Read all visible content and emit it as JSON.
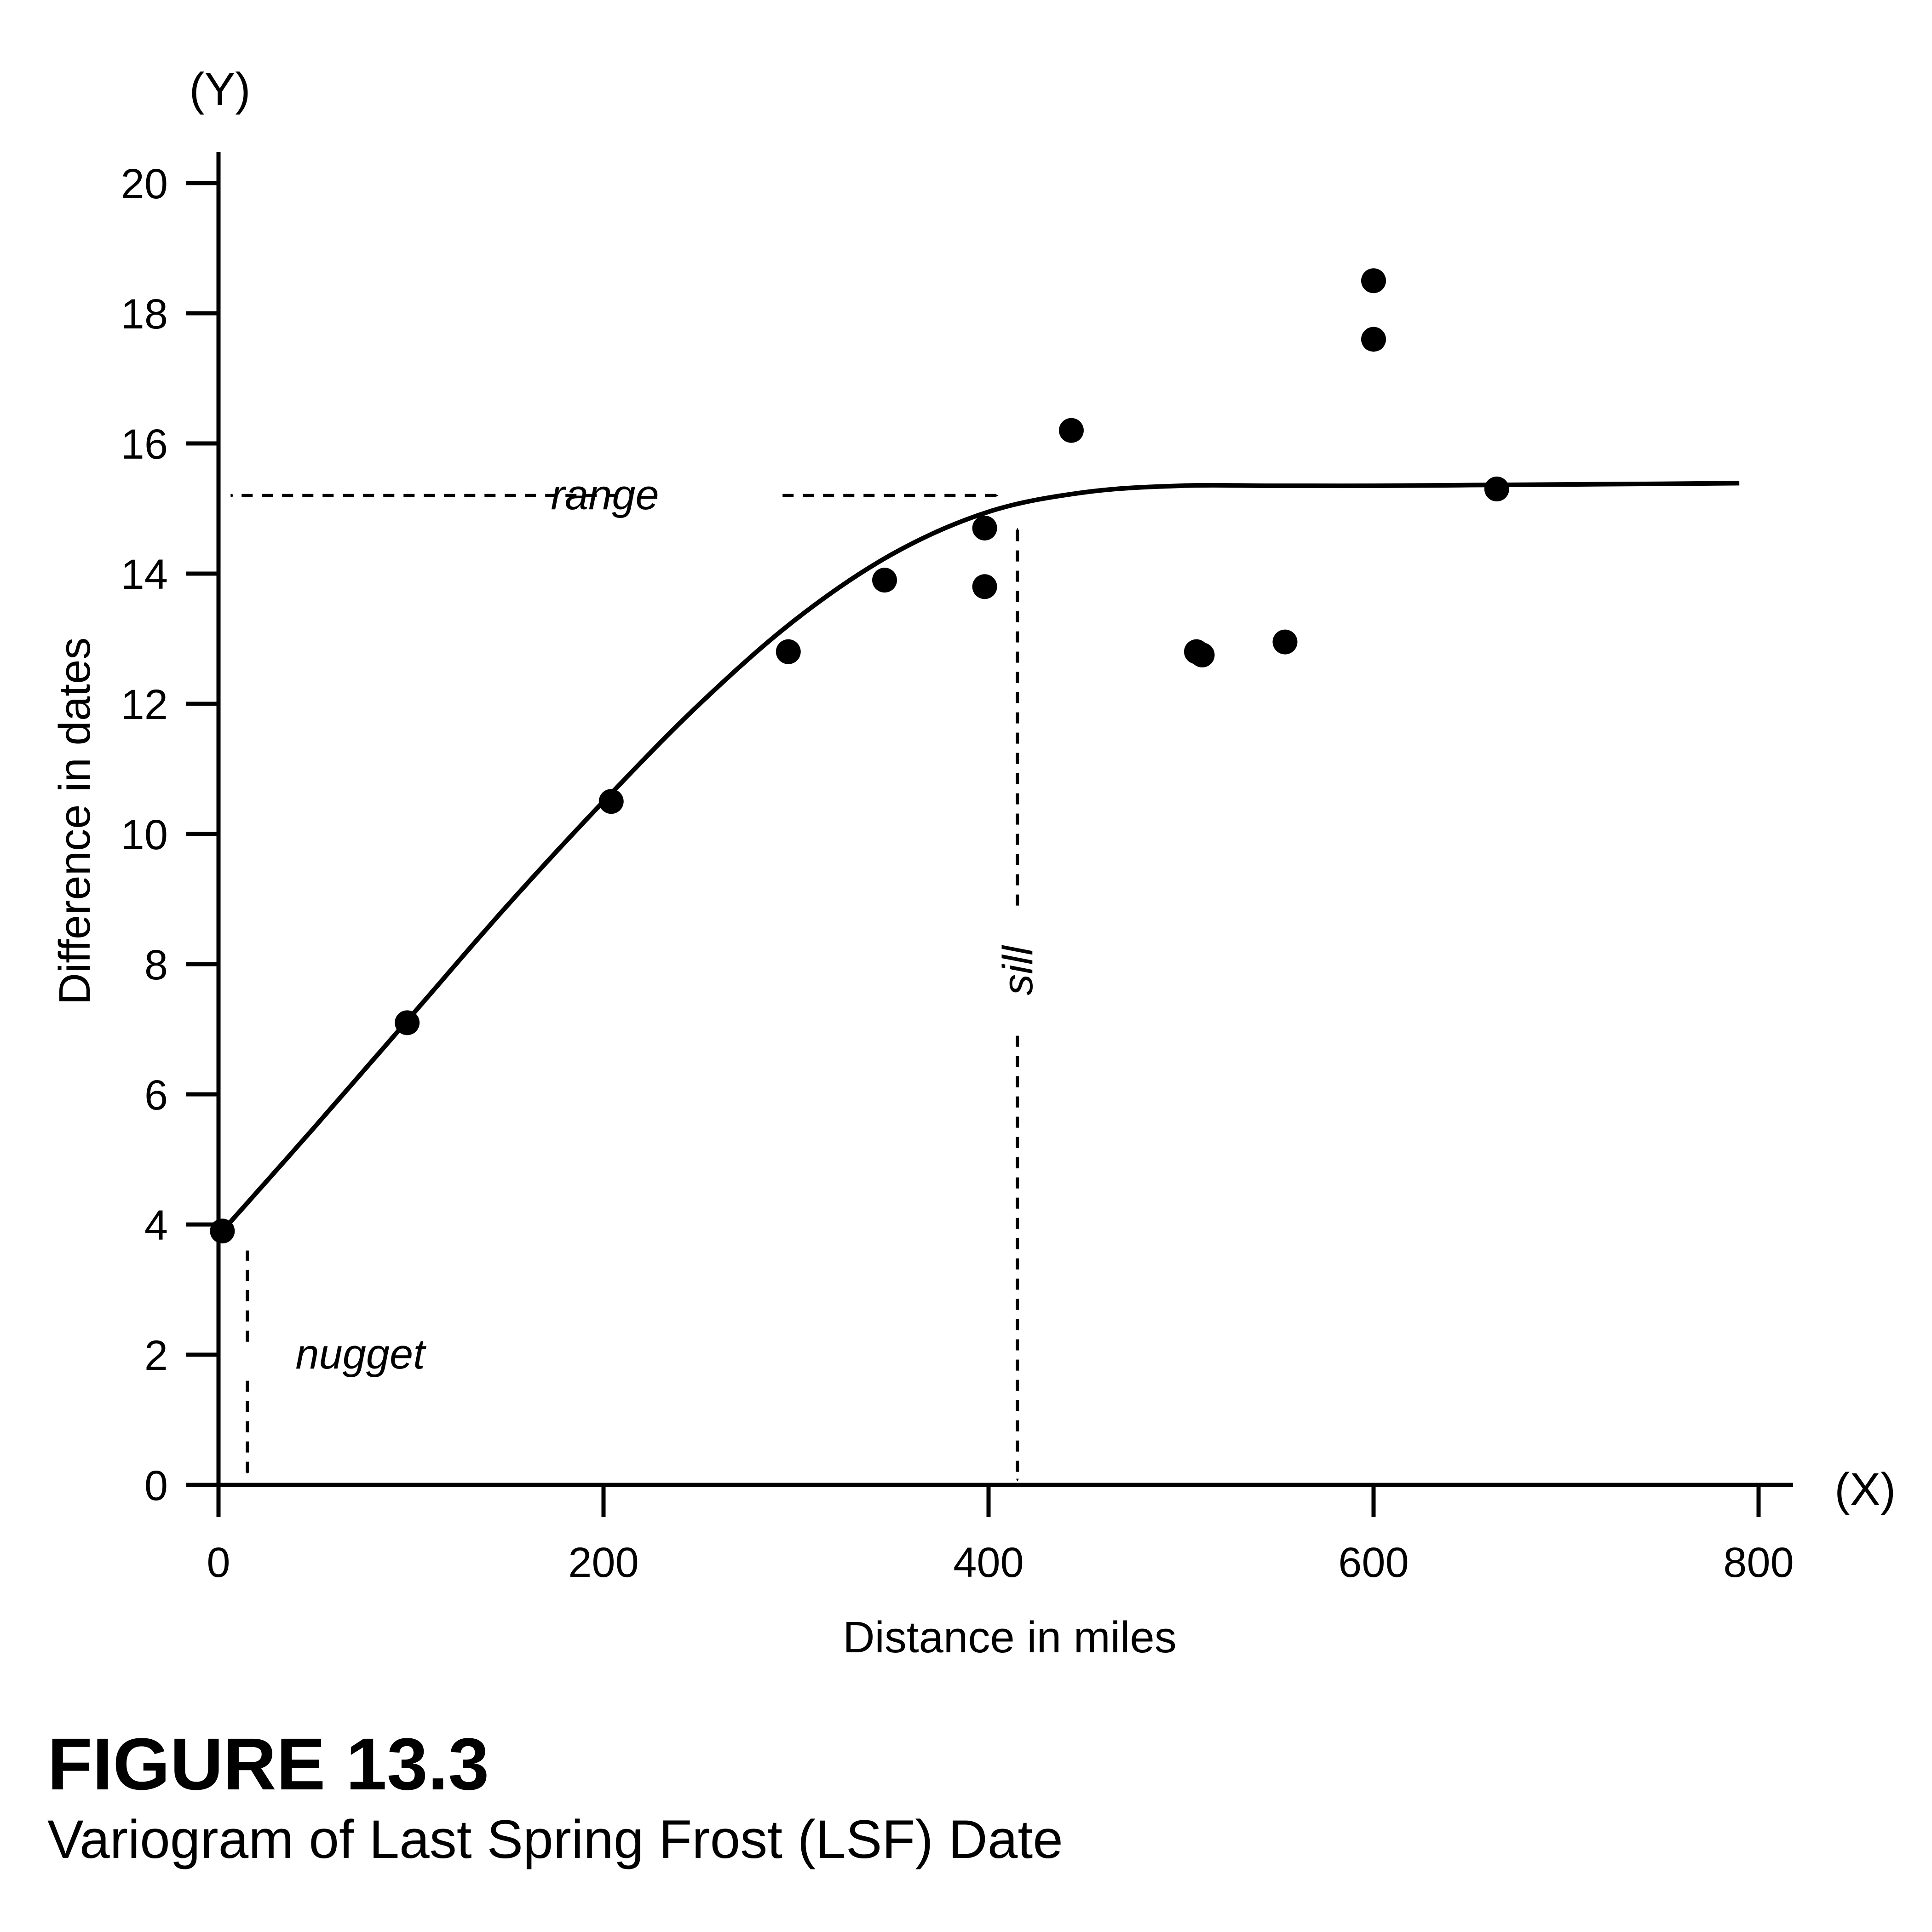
{
  "figure": {
    "label": "FIGURE 13.3",
    "caption": "Variogram of Last Spring Frost (LSF) Date"
  },
  "chart_data": {
    "type": "scatter",
    "title": "",
    "xlabel": "Distance in miles",
    "ylabel": "Difference in dates",
    "x_axis_symbol": "(X)",
    "y_axis_symbol": "(Y)",
    "xlim": [
      0,
      800
    ],
    "ylim": [
      0,
      20
    ],
    "xticks": [
      0,
      200,
      400,
      600,
      800
    ],
    "yticks": [
      0,
      2,
      4,
      6,
      8,
      10,
      12,
      14,
      16,
      18,
      20
    ],
    "grid": false,
    "points": [
      {
        "x": 2,
        "y": 3.9
      },
      {
        "x": 98,
        "y": 7.1
      },
      {
        "x": 204,
        "y": 10.5
      },
      {
        "x": 296,
        "y": 12.8
      },
      {
        "x": 346,
        "y": 13.9
      },
      {
        "x": 398,
        "y": 14.7
      },
      {
        "x": 398,
        "y": 13.8
      },
      {
        "x": 443,
        "y": 16.2
      },
      {
        "x": 508,
        "y": 12.8
      },
      {
        "x": 511,
        "y": 12.75
      },
      {
        "x": 554,
        "y": 12.95
      },
      {
        "x": 600,
        "y": 18.5
      },
      {
        "x": 600,
        "y": 17.6
      },
      {
        "x": 664,
        "y": 15.3
      }
    ],
    "fitted_curve": {
      "x": [
        2,
        50,
        100,
        150,
        200,
        250,
        300,
        350,
        400,
        450,
        500,
        550,
        600,
        650,
        700,
        750,
        790
      ],
      "y": [
        3.9,
        5.5,
        7.2,
        8.9,
        10.5,
        12.0,
        13.3,
        14.3,
        14.95,
        15.25,
        15.35,
        15.35,
        15.35,
        15.36,
        15.37,
        15.38,
        15.39
      ]
    },
    "annotations": {
      "range": {
        "label": "range",
        "x_from": 2,
        "x_to": 405,
        "y": 15.2
      },
      "sill": {
        "label": "sill",
        "x": 415,
        "y_from": 0,
        "y_to": 14.7
      },
      "nugget": {
        "label": "nugget",
        "x": 15,
        "y_from": 0,
        "y_to": 3.6,
        "label_x": 40,
        "label_y": 2
      }
    }
  }
}
